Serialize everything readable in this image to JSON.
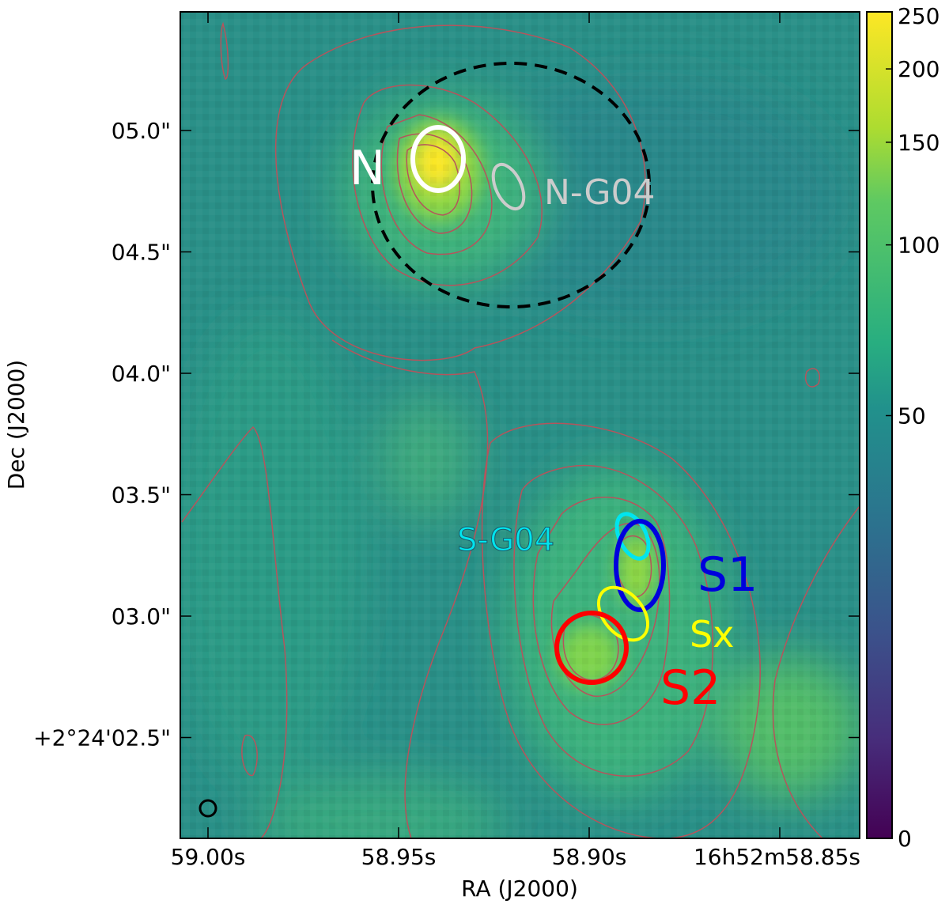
{
  "chart_data": {
    "type": "heatmap",
    "title": "",
    "xlabel": "RA (J2000)",
    "ylabel": "Dec (J2000)",
    "x_ticks": [
      {
        "value": 59.0,
        "label": "59.00s"
      },
      {
        "value": 58.95,
        "label": "58.95s"
      },
      {
        "value": 58.9,
        "label": "58.90s"
      },
      {
        "value": 58.85,
        "label": "16h52m58.85s"
      }
    ],
    "y_ticks": [
      {
        "value": 5.0,
        "label": "05.0\""
      },
      {
        "value": 4.5,
        "label": "04.5\""
      },
      {
        "value": 4.0,
        "label": "04.0\""
      },
      {
        "value": 3.5,
        "label": "03.5\""
      },
      {
        "value": 3.0,
        "label": "03.0\""
      },
      {
        "value": 2.5,
        "label": "+2°24'02.5\""
      }
    ],
    "xlim": [
      59.007,
      58.829
    ],
    "ylim": [
      2.08,
      5.49
    ],
    "colorbar": {
      "colormap": "viridis",
      "range": [
        0,
        250
      ],
      "ticks": [
        0,
        50,
        100,
        150,
        200,
        250
      ]
    },
    "contour_color": "#b5545c",
    "regions": [
      {
        "label": "N",
        "color": "#ffffff",
        "ra": 58.941,
        "dec": 4.88
      },
      {
        "label": "N-G04",
        "color": "#cccccc",
        "ra": 58.925,
        "dec": 4.78
      },
      {
        "label": "S-G04",
        "color": "#00e5ee",
        "ra": 58.888,
        "dec": 3.31
      },
      {
        "label": "S1",
        "color": "#0000dd",
        "ra": 58.886,
        "dec": 3.18
      },
      {
        "label": "Sx",
        "color": "#ffff00",
        "ra": 58.891,
        "dec": 2.99
      },
      {
        "label": "S2",
        "color": "#ff0000",
        "ra": 58.899,
        "dec": 2.86
      }
    ],
    "beam_color": "#000000"
  }
}
